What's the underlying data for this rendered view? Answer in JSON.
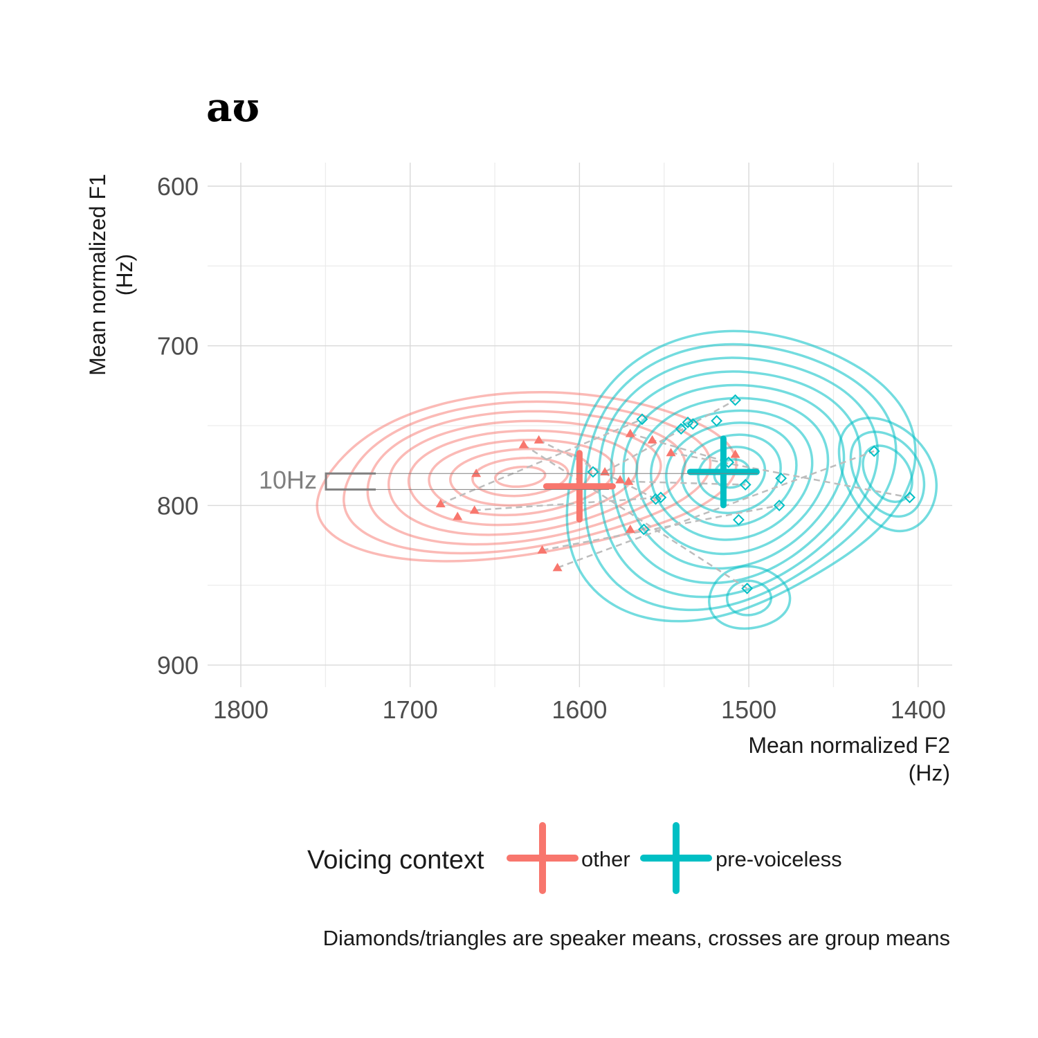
{
  "chart_data": {
    "type": "scatter",
    "title": "aʊ",
    "xlabel": [
      "Mean normalized F2",
      "(Hz)"
    ],
    "ylabel": [
      "Mean normalized F1",
      "(Hz)"
    ],
    "x_reversed": true,
    "y_reversed": true,
    "xlim": [
      1820,
      1380
    ],
    "ylim": [
      585,
      900
    ],
    "x_ticks": [
      1800,
      1700,
      1600,
      1500,
      1400
    ],
    "y_ticks": [
      600,
      700,
      800,
      900
    ],
    "grid": true,
    "legend": {
      "title": "Voicing context",
      "position": "bottom",
      "items": [
        "other",
        "pre-voiceless"
      ]
    },
    "caption": "Diamonds/triangles are speaker means, crosses are group means",
    "scale_bar": {
      "label": "10Hz",
      "size": 10
    },
    "series": [
      {
        "name": "other",
        "color": "#F8766D",
        "marker": "triangle",
        "points": [
          [
            1682,
            799
          ],
          [
            1672,
            807
          ],
          [
            1662,
            803
          ],
          [
            1661,
            780
          ],
          [
            1633,
            762
          ],
          [
            1624,
            759
          ],
          [
            1622,
            828
          ],
          [
            1613,
            839
          ],
          [
            1585,
            779
          ],
          [
            1576,
            784
          ],
          [
            1571,
            785
          ],
          [
            1570,
            755
          ],
          [
            1570,
            815
          ],
          [
            1557,
            759
          ],
          [
            1546,
            767
          ],
          [
            1508,
            768
          ]
        ],
        "group_mean": [
          1600,
          788
        ]
      },
      {
        "name": "pre-voiceless",
        "color": "#00BFC4",
        "marker": "diamond",
        "points": [
          [
            1592,
            779
          ],
          [
            1563,
            746
          ],
          [
            1562,
            815
          ],
          [
            1555,
            796
          ],
          [
            1552,
            795
          ],
          [
            1540,
            752
          ],
          [
            1536,
            748
          ],
          [
            1533,
            749
          ],
          [
            1519,
            747
          ],
          [
            1512,
            773
          ],
          [
            1508,
            734
          ],
          [
            1506,
            809
          ],
          [
            1502,
            787
          ],
          [
            1501,
            852
          ],
          [
            1481,
            783
          ],
          [
            1482,
            800
          ],
          [
            1426,
            766
          ],
          [
            1405,
            795
          ]
        ],
        "group_mean": [
          1515,
          779
        ]
      }
    ]
  }
}
